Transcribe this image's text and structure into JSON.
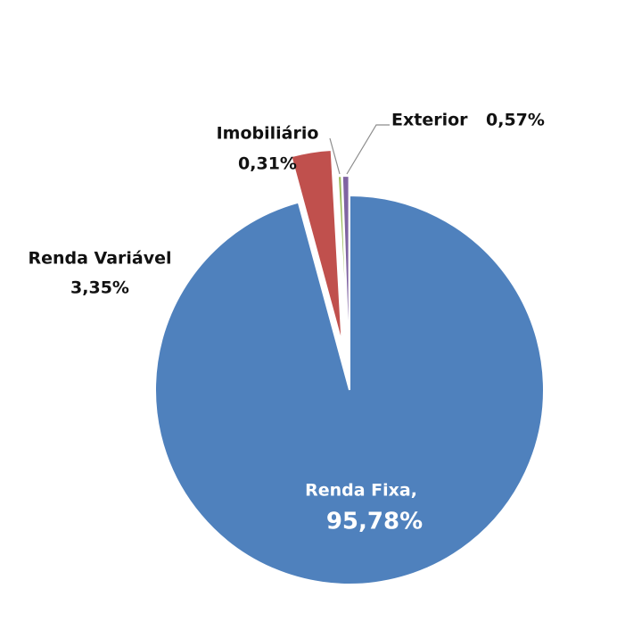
{
  "chart_data": {
    "type": "pie",
    "categories": [
      "Renda Fixa,",
      "Renda Variável",
      "Imobiliário",
      "Exterior"
    ],
    "values": [
      95.78,
      3.35,
      0.31,
      0.57
    ],
    "value_labels": [
      "95,78%",
      "3,35%",
      "0,31%",
      "0,57%"
    ],
    "colors": [
      "#4f81bd",
      "#c0504d",
      "#9bbb59",
      "#8064a2"
    ]
  }
}
